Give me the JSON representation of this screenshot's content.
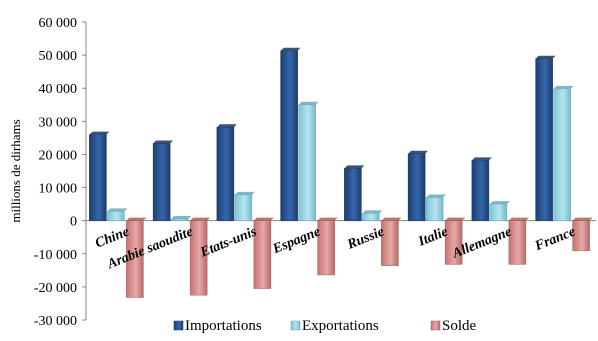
{
  "chart_data": {
    "type": "bar",
    "ylabel": "millions de dirhams",
    "ylim": [
      -30000,
      60000
    ],
    "yticks": [
      "-30 000",
      "-20 000",
      "-10 000",
      "0",
      "10 000",
      "20 000",
      "30 000",
      "40 000",
      "50 000",
      "60 000"
    ],
    "ytick_values": [
      -30000,
      -20000,
      -10000,
      0,
      10000,
      20000,
      30000,
      40000,
      50000,
      60000
    ],
    "categories": [
      "Chine",
      "Arabie saoudite",
      "Etats-unis",
      "Espagne",
      "Russie",
      "Italie",
      "Allemagne",
      "France"
    ],
    "series": [
      {
        "name": "Importations",
        "color": "#2a5595",
        "values": [
          26000,
          23300,
          28200,
          51300,
          15800,
          20200,
          18200,
          48900
        ]
      },
      {
        "name": "Exportations",
        "color": "#9ad6e4",
        "values": [
          2800,
          500,
          7800,
          35000,
          2200,
          7000,
          5000,
          39800
        ]
      },
      {
        "name": "Solde",
        "color": "#d99694",
        "values": [
          -23200,
          -22500,
          -20500,
          -16400,
          -13600,
          -13200,
          -13200,
          -9100
        ]
      }
    ],
    "legend_position": "bottom",
    "grid": false
  }
}
